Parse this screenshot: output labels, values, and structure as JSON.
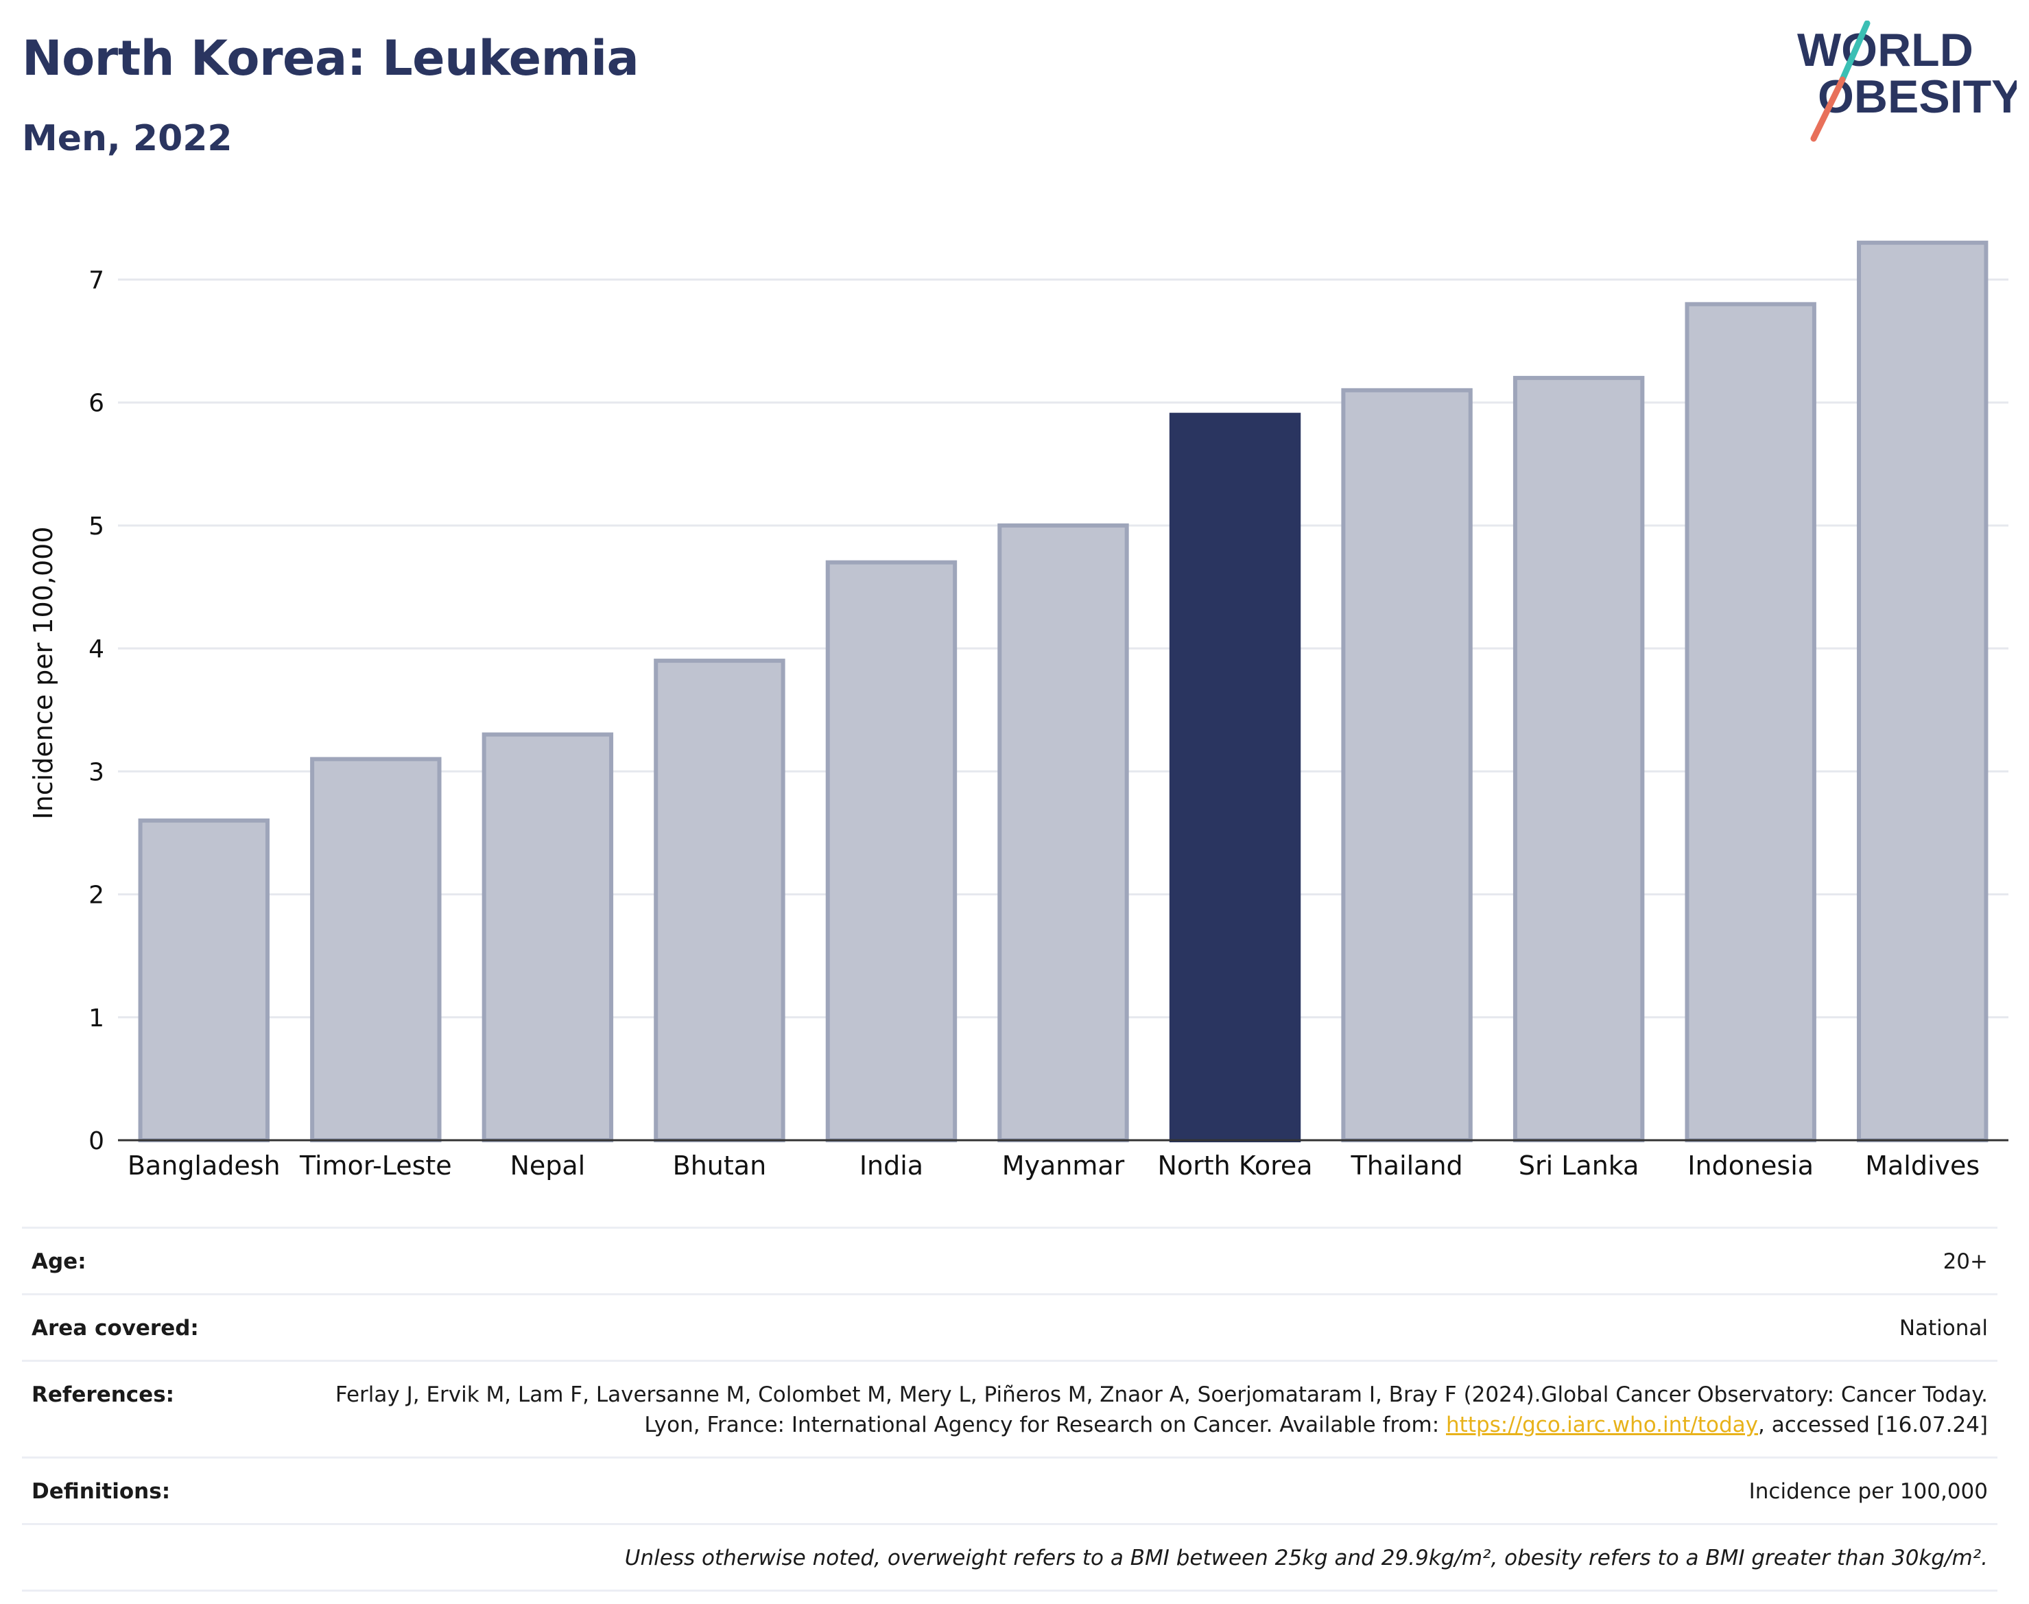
{
  "header": {
    "title": "North Korea: Leukemia",
    "subtitle": "Men, 2022"
  },
  "logo": {
    "line1": "WORLD",
    "line2": "OBESITY",
    "colors": {
      "text": "#2a3560",
      "slash_top": "#3bbfb4",
      "slash_bottom": "#e8705a"
    }
  },
  "chart_data": {
    "type": "bar",
    "categories": [
      "Bangladesh",
      "Timor-Leste",
      "Nepal",
      "Bhutan",
      "India",
      "Myanmar",
      "North Korea",
      "Thailand",
      "Sri Lanka",
      "Indonesia",
      "Maldives"
    ],
    "values": [
      2.6,
      3.1,
      3.3,
      3.9,
      4.7,
      5.0,
      5.9,
      6.1,
      6.2,
      6.8,
      7.3
    ],
    "highlight": "North Korea",
    "ylabel": "Incidence per 100,000",
    "ylim": [
      0,
      7.6
    ],
    "yticks": [
      0,
      1,
      2,
      3,
      4,
      5,
      6,
      7
    ],
    "grid": true,
    "colors": {
      "bar": "#bfc3d0",
      "bar_border": "#9ea5ba",
      "highlight": "#2a3560",
      "grid": "#e6e8ee",
      "axis": "#333333"
    }
  },
  "info": {
    "rows": [
      {
        "label": "Age:",
        "value": "20+"
      },
      {
        "label": "Area covered:",
        "value": "National"
      },
      {
        "label": "References:",
        "value_pre": "Ferlay J, Ervik M, Lam F, Laversanne M, Colombet M, Mery L, Piñeros M, Znaor A, Soerjomataram I, Bray F (2024).Global Cancer Observatory: Cancer Today. Lyon, France: International Agency for Research on Cancer. Available from: ",
        "link": "https://gco.iarc.who.int/today",
        "value_post": ", accessed [16.07.24]"
      },
      {
        "label": "Definitions:",
        "value": "Incidence per 100,000"
      }
    ],
    "note": "Unless otherwise noted, overweight refers to a BMI between 25kg and 29.9kg/m², obesity refers to a BMI greater than 30kg/m²."
  }
}
